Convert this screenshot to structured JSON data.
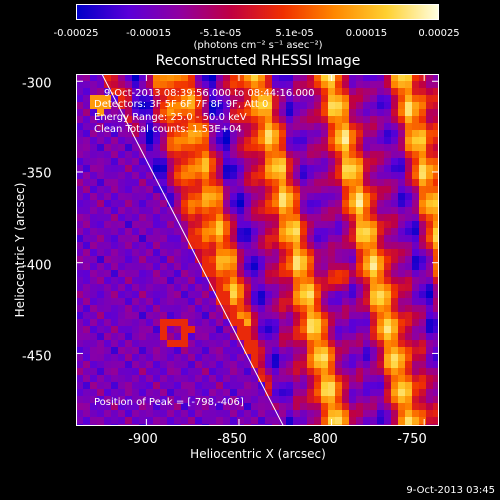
{
  "chart_data": {
    "type": "heatmap",
    "title": "Reconstructed RHESSI Image",
    "xlabel": "Heliocentric X (arcsec)",
    "ylabel": "Heliocentric Y (arcsec)",
    "xlim": [
      -938,
      -742
    ],
    "ylim": [
      -490,
      -296
    ],
    "xticks": [
      {
        "value": -900,
        "label": "-900"
      },
      {
        "value": -850,
        "label": "-850"
      },
      {
        "value": -800,
        "label": "-800"
      },
      {
        "value": -750,
        "label": "-750"
      }
    ],
    "yticks": [
      {
        "value": -300,
        "label": "-300"
      },
      {
        "value": -350,
        "label": "-350"
      },
      {
        "value": -400,
        "label": "-400"
      },
      {
        "value": -450,
        "label": "-450"
      }
    ],
    "colorbar": {
      "range": [
        -0.00025,
        0.00025
      ],
      "ticks": [
        {
          "value": -0.00025,
          "label": "-0.00025"
        },
        {
          "value": -0.00015,
          "label": "-0.00015"
        },
        {
          "value": -5.1e-05,
          "label": "-5.1e-05"
        },
        {
          "value": 5.1e-05,
          "label": "5.1e-05"
        },
        {
          "value": 0.00015,
          "label": "0.00015"
        },
        {
          "value": 0.00025,
          "label": "0.00025"
        }
      ],
      "unit_label": "(photons cm⁻² s⁻¹ asec⁻²)",
      "colors": [
        "#0000c8",
        "#5a00d8",
        "#9000a0",
        "#c00040",
        "#f03000",
        "#ff8800",
        "#ffd030",
        "#ffffe0"
      ]
    },
    "annotations": [
      "9-Oct-2013 08:39:56.000 to 08:44:16.000",
      "Detectors: 3F 5F 6F 7F 8F 9F, Att 0",
      "Energy Range: 25.0 - 50.0 keV",
      "Clean    Total counts: 1.53E+04"
    ],
    "peak_label": "Position of Peak = [-798,-406]",
    "peak": [
      -798,
      -406
    ],
    "limb_line": [
      [
        -924,
        -296
      ],
      [
        -826,
        -490
      ]
    ]
  },
  "timestamp": "9-Oct-2013 03:45"
}
